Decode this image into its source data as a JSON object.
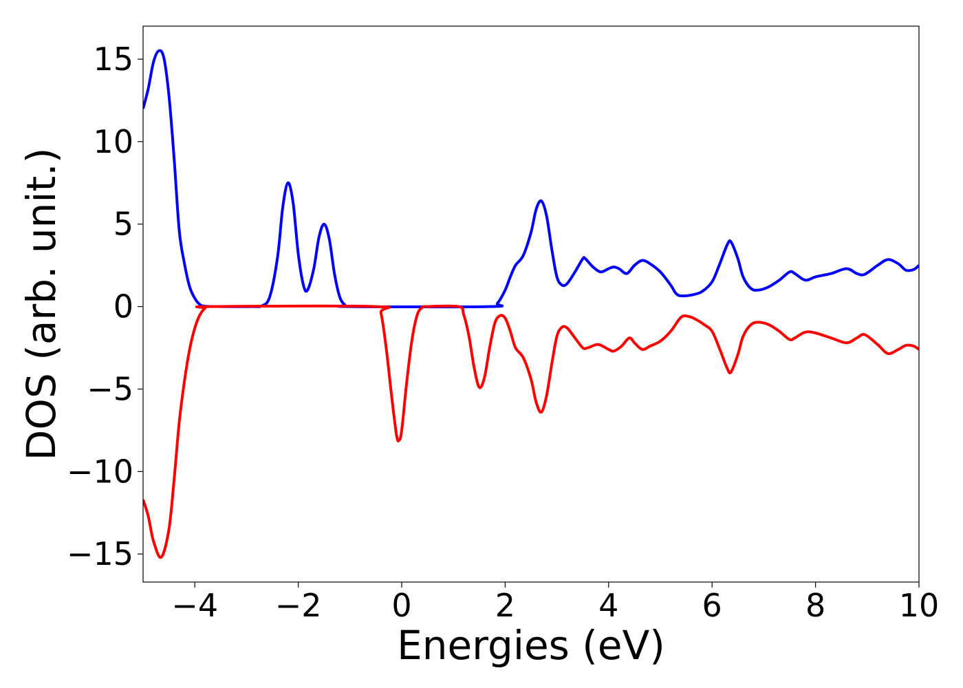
{
  "chart_data": {
    "type": "line",
    "title": "",
    "xlabel": "Energies (eV)",
    "ylabel": "DOS (arb. unit.)",
    "xlim": [
      -5,
      10
    ],
    "ylim": [
      -16.7,
      17.0
    ],
    "grid": false,
    "legend": "none",
    "x_ticks": [
      -4,
      -2,
      0,
      2,
      4,
      6,
      8,
      10
    ],
    "x_tick_labels": [
      "−4",
      "−2",
      "0",
      "2",
      "4",
      "6",
      "8",
      "10"
    ],
    "y_ticks": [
      -15,
      -10,
      -5,
      0,
      5,
      10,
      15
    ],
    "y_tick_labels": [
      "−15",
      "−10",
      "−5",
      "0",
      "5",
      "10",
      "15"
    ],
    "series": [
      {
        "color": "#0000ff",
        "points": [
          [
            -5.0,
            12.0
          ],
          [
            -4.9,
            13.2
          ],
          [
            -4.8,
            14.8
          ],
          [
            -4.7,
            15.5
          ],
          [
            -4.6,
            15.1
          ],
          [
            -4.5,
            12.8
          ],
          [
            -4.4,
            9.0
          ],
          [
            -4.3,
            4.6
          ],
          [
            -4.2,
            2.6
          ],
          [
            -4.1,
            1.2
          ],
          [
            -4.0,
            0.5
          ],
          [
            -3.9,
            0.12
          ],
          [
            -3.8,
            0.02
          ],
          [
            -3.5,
            0.0
          ],
          [
            -2.9,
            0.0
          ],
          [
            -2.7,
            0.05
          ],
          [
            -2.55,
            0.6
          ],
          [
            -2.4,
            3.0
          ],
          [
            -2.3,
            6.0
          ],
          [
            -2.2,
            7.5
          ],
          [
            -2.1,
            6.3
          ],
          [
            -2.0,
            3.2
          ],
          [
            -1.9,
            1.3
          ],
          [
            -1.82,
            1.0
          ],
          [
            -1.7,
            2.3
          ],
          [
            -1.6,
            4.2
          ],
          [
            -1.5,
            5.0
          ],
          [
            -1.4,
            4.1
          ],
          [
            -1.3,
            2.0
          ],
          [
            -1.2,
            0.6
          ],
          [
            -1.1,
            0.1
          ],
          [
            -1.0,
            0.0
          ],
          [
            1.7,
            0.0
          ],
          [
            1.85,
            0.2
          ],
          [
            2.0,
            1.0
          ],
          [
            2.1,
            1.8
          ],
          [
            2.2,
            2.5
          ],
          [
            2.35,
            3.1
          ],
          [
            2.5,
            4.5
          ],
          [
            2.6,
            5.9
          ],
          [
            2.7,
            6.4
          ],
          [
            2.8,
            5.5
          ],
          [
            2.9,
            3.5
          ],
          [
            3.0,
            1.8
          ],
          [
            3.1,
            1.3
          ],
          [
            3.2,
            1.4
          ],
          [
            3.35,
            2.1
          ],
          [
            3.5,
            2.9
          ],
          [
            3.55,
            2.9
          ],
          [
            3.7,
            2.4
          ],
          [
            3.85,
            2.1
          ],
          [
            4.0,
            2.3
          ],
          [
            4.1,
            2.4
          ],
          [
            4.2,
            2.3
          ],
          [
            4.35,
            2.0
          ],
          [
            4.5,
            2.5
          ],
          [
            4.65,
            2.8
          ],
          [
            4.8,
            2.6
          ],
          [
            5.0,
            2.1
          ],
          [
            5.2,
            1.3
          ],
          [
            5.3,
            0.8
          ],
          [
            5.4,
            0.65
          ],
          [
            5.6,
            0.7
          ],
          [
            5.8,
            0.9
          ],
          [
            6.0,
            1.5
          ],
          [
            6.15,
            2.6
          ],
          [
            6.3,
            3.8
          ],
          [
            6.37,
            3.9
          ],
          [
            6.5,
            2.9
          ],
          [
            6.6,
            1.8
          ],
          [
            6.75,
            1.1
          ],
          [
            6.9,
            1.0
          ],
          [
            7.1,
            1.2
          ],
          [
            7.3,
            1.6
          ],
          [
            7.5,
            2.1
          ],
          [
            7.6,
            2.0
          ],
          [
            7.8,
            1.6
          ],
          [
            8.0,
            1.8
          ],
          [
            8.3,
            2.0
          ],
          [
            8.6,
            2.3
          ],
          [
            8.8,
            2.0
          ],
          [
            8.95,
            1.95
          ],
          [
            9.2,
            2.5
          ],
          [
            9.4,
            2.85
          ],
          [
            9.6,
            2.6
          ],
          [
            9.75,
            2.2
          ],
          [
            9.9,
            2.25
          ],
          [
            10.0,
            2.5
          ]
        ]
      },
      {
        "color": "#ff0000",
        "points": [
          [
            -5.0,
            -11.7
          ],
          [
            -4.9,
            -12.7
          ],
          [
            -4.8,
            -14.2
          ],
          [
            -4.65,
            -15.2
          ],
          [
            -4.5,
            -13.5
          ],
          [
            -4.4,
            -10.5
          ],
          [
            -4.3,
            -7.0
          ],
          [
            -4.2,
            -4.5
          ],
          [
            -4.1,
            -2.6
          ],
          [
            -4.0,
            -1.3
          ],
          [
            -3.9,
            -0.5
          ],
          [
            -3.8,
            -0.1
          ],
          [
            -3.7,
            0.0
          ],
          [
            -0.5,
            0.0
          ],
          [
            -0.4,
            -0.4
          ],
          [
            -0.3,
            -2.5
          ],
          [
            -0.2,
            -5.3
          ],
          [
            -0.1,
            -7.8
          ],
          [
            -0.05,
            -8.1
          ],
          [
            0.0,
            -7.5
          ],
          [
            0.1,
            -4.5
          ],
          [
            0.2,
            -2.0
          ],
          [
            0.3,
            -0.5
          ],
          [
            0.4,
            -0.05
          ],
          [
            0.5,
            0.0
          ],
          [
            1.1,
            0.0
          ],
          [
            1.2,
            -0.5
          ],
          [
            1.3,
            -1.8
          ],
          [
            1.4,
            -3.7
          ],
          [
            1.5,
            -4.9
          ],
          [
            1.6,
            -4.3
          ],
          [
            1.7,
            -2.5
          ],
          [
            1.8,
            -1.0
          ],
          [
            1.9,
            -0.55
          ],
          [
            2.0,
            -0.7
          ],
          [
            2.1,
            -1.5
          ],
          [
            2.2,
            -2.5
          ],
          [
            2.35,
            -3.1
          ],
          [
            2.5,
            -4.4
          ],
          [
            2.6,
            -5.8
          ],
          [
            2.7,
            -6.4
          ],
          [
            2.8,
            -5.4
          ],
          [
            2.9,
            -3.5
          ],
          [
            3.0,
            -1.8
          ],
          [
            3.1,
            -1.25
          ],
          [
            3.2,
            -1.3
          ],
          [
            3.35,
            -1.9
          ],
          [
            3.5,
            -2.5
          ],
          [
            3.6,
            -2.5
          ],
          [
            3.8,
            -2.3
          ],
          [
            4.0,
            -2.6
          ],
          [
            4.1,
            -2.7
          ],
          [
            4.25,
            -2.4
          ],
          [
            4.4,
            -1.9
          ],
          [
            4.5,
            -2.2
          ],
          [
            4.65,
            -2.6
          ],
          [
            4.8,
            -2.4
          ],
          [
            5.0,
            -2.1
          ],
          [
            5.2,
            -1.5
          ],
          [
            5.4,
            -0.65
          ],
          [
            5.55,
            -0.6
          ],
          [
            5.7,
            -0.8
          ],
          [
            5.85,
            -1.1
          ],
          [
            6.0,
            -1.5
          ],
          [
            6.15,
            -2.6
          ],
          [
            6.3,
            -3.8
          ],
          [
            6.37,
            -3.95
          ],
          [
            6.5,
            -2.9
          ],
          [
            6.6,
            -1.8
          ],
          [
            6.75,
            -1.1
          ],
          [
            6.9,
            -0.95
          ],
          [
            7.1,
            -1.1
          ],
          [
            7.3,
            -1.5
          ],
          [
            7.5,
            -2.0
          ],
          [
            7.6,
            -1.9
          ],
          [
            7.8,
            -1.55
          ],
          [
            8.0,
            -1.6
          ],
          [
            8.3,
            -1.9
          ],
          [
            8.6,
            -2.2
          ],
          [
            8.8,
            -1.9
          ],
          [
            8.95,
            -1.7
          ],
          [
            9.2,
            -2.3
          ],
          [
            9.4,
            -2.85
          ],
          [
            9.6,
            -2.6
          ],
          [
            9.75,
            -2.35
          ],
          [
            9.9,
            -2.4
          ],
          [
            10.0,
            -2.6
          ]
        ]
      }
    ]
  }
}
